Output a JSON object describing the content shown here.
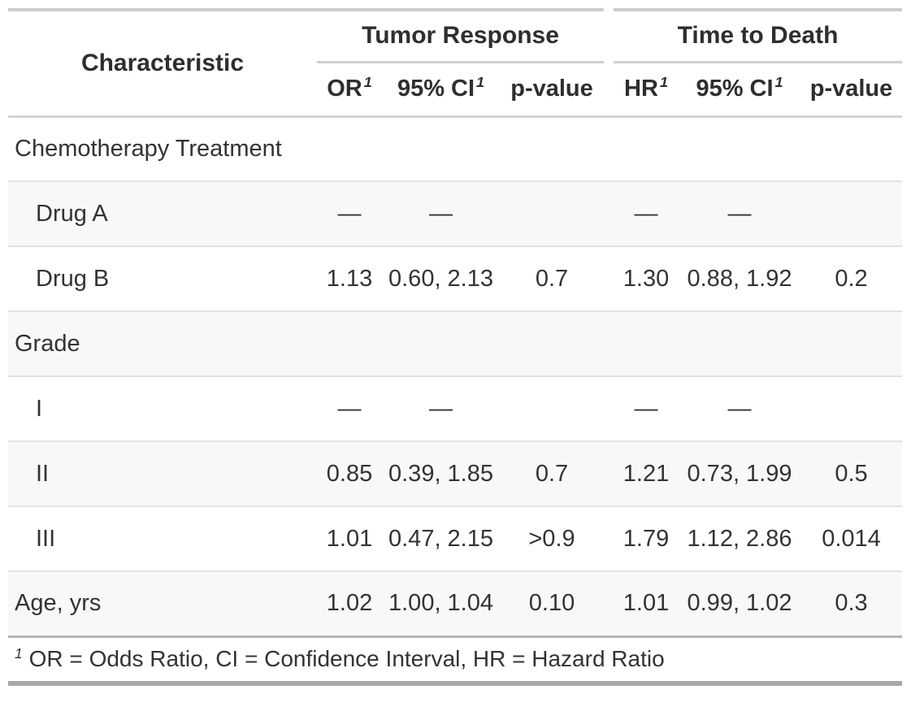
{
  "header": {
    "characteristic": "Characteristic",
    "spanners": [
      {
        "label": "Tumor Response",
        "columns": [
          {
            "label": "OR",
            "sup": "1"
          },
          {
            "label": "95% CI",
            "sup": "1"
          },
          {
            "label": "p-value",
            "sup": ""
          }
        ]
      },
      {
        "label": "Time to Death",
        "columns": [
          {
            "label": "HR",
            "sup": "1"
          },
          {
            "label": "95% CI",
            "sup": "1"
          },
          {
            "label": "p-value",
            "sup": ""
          }
        ]
      }
    ]
  },
  "rows": [
    {
      "label": "Chemotherapy Treatment",
      "indent": false,
      "striped": false,
      "cells": [
        "",
        "",
        "",
        "",
        "",
        ""
      ]
    },
    {
      "label": "Drug A",
      "indent": true,
      "striped": true,
      "cells": [
        "—",
        "—",
        "",
        "—",
        "—",
        ""
      ]
    },
    {
      "label": "Drug B",
      "indent": true,
      "striped": false,
      "cells": [
        "1.13",
        "0.60, 2.13",
        "0.7",
        "1.30",
        "0.88, 1.92",
        "0.2"
      ]
    },
    {
      "label": "Grade",
      "indent": false,
      "striped": true,
      "cells": [
        "",
        "",
        "",
        "",
        "",
        ""
      ]
    },
    {
      "label": "I",
      "indent": true,
      "striped": false,
      "cells": [
        "—",
        "—",
        "",
        "—",
        "—",
        ""
      ]
    },
    {
      "label": "II",
      "indent": true,
      "striped": true,
      "cells": [
        "0.85",
        "0.39, 1.85",
        "0.7",
        "1.21",
        "0.73, 1.99",
        "0.5"
      ]
    },
    {
      "label": "III",
      "indent": true,
      "striped": false,
      "cells": [
        "1.01",
        "0.47, 2.15",
        ">0.9",
        "1.79",
        "1.12, 2.86",
        "0.014"
      ]
    },
    {
      "label": "Age, yrs",
      "indent": false,
      "striped": true,
      "cells": [
        "1.02",
        "1.00, 1.04",
        "0.10",
        "1.01",
        "0.99, 1.02",
        "0.3"
      ]
    }
  ],
  "footnote": {
    "marker": "1",
    "text": "OR = Odds Ratio, CI = Confidence Interval, HR = Hazard Ratio"
  },
  "colors": {
    "text": "#333333",
    "stripe_background": "#f8f8f8",
    "row_border": "#e3e3e3",
    "header_border": "#d3d3d3",
    "footer_border": "#b5b5b5",
    "table_top_bar": "#cdcdcd",
    "table_bottom_bar": "#a9a9a9"
  }
}
